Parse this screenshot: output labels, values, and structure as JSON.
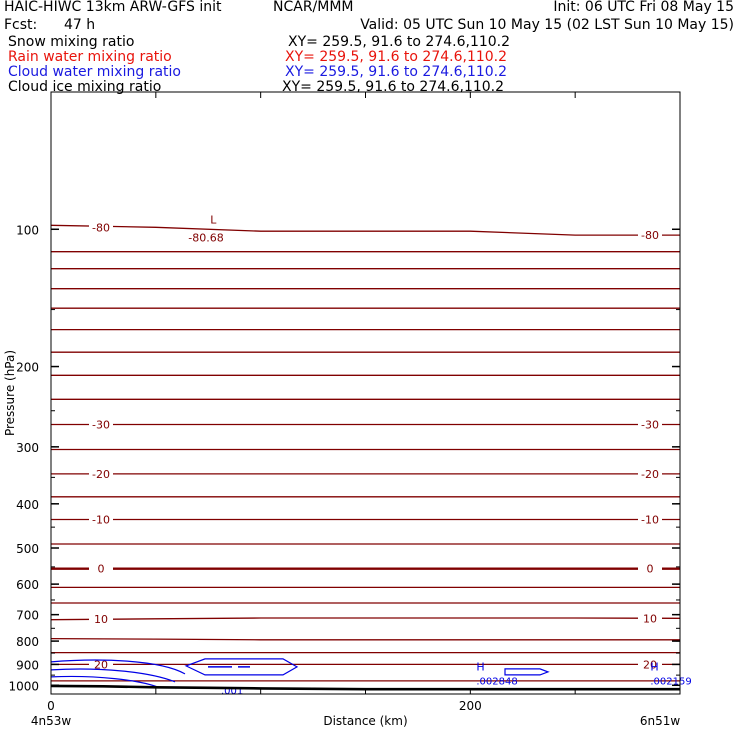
{
  "header": {
    "model": "HAIC-HIWC 13km ARW-GFS init",
    "org": "NCAR/MMM",
    "init": "Init: 06 UTC Fri 08 May 15",
    "fcst_label": "Fcst:",
    "fcst_value": "47 h",
    "valid": "Valid: 05 UTC Sun 10 May 15 (02 LST Sun 10 May 15)"
  },
  "fields": [
    {
      "name": "Snow mixing ratio",
      "xy": "XY= 259.5, 91.6 to 274.6,110.2",
      "color": "#000000"
    },
    {
      "name": "Rain water mixing ratio",
      "xy": "XY= 259.5, 91.6 to 274.6,110.2",
      "color": "#e8140c"
    },
    {
      "name": "Cloud water mixing ratio",
      "xy": "XY= 259.5, 91.6 to 274.6,110.2",
      "color": "#1a1ae0"
    },
    {
      "name": "Cloud ice mixing ratio",
      "xy": "XY= 259.5, 91.6 to 274.6,110.2",
      "color": "#000000"
    }
  ],
  "colors": {
    "temperature": "#800000",
    "cloud_water": "#0000e6",
    "terrain": "#000000"
  },
  "chart_data": {
    "type": "line",
    "ylabel": "Pressure (hPa)",
    "xlabel": "Distance (km)",
    "xlim": [
      0,
      300
    ],
    "ylim": [
      1045,
      50
    ],
    "y_axis": "log",
    "xticks": [
      0,
      200
    ],
    "yticks": [
      100,
      200,
      300,
      400,
      500,
      600,
      700,
      800,
      900,
      1000
    ],
    "start_label": "4n53w",
    "end_label": "6n51w",
    "temperature_isotherms": [
      {
        "label": "-80",
        "p": [
          98,
          99,
          101,
          101,
          101,
          103,
          103
        ]
      },
      {
        "label": "",
        "p": [
          112,
          112,
          112,
          112,
          112,
          112,
          112
        ]
      },
      {
        "label": "",
        "p": [
          122,
          122,
          122,
          122,
          122,
          122,
          122
        ]
      },
      {
        "label": "",
        "p": [
          135,
          135,
          135,
          135,
          135,
          135,
          135
        ]
      },
      {
        "label": "",
        "p": [
          149,
          149,
          149,
          149,
          149,
          149,
          149
        ]
      },
      {
        "label": "",
        "p": [
          166,
          166,
          166,
          166,
          166,
          166,
          166
        ]
      },
      {
        "label": "",
        "p": [
          186,
          186,
          186,
          186,
          186,
          186,
          186
        ]
      },
      {
        "label": "",
        "p": [
          209,
          209,
          209,
          209,
          209,
          209,
          209
        ]
      },
      {
        "label": "",
        "p": [
          236,
          236,
          236,
          236,
          236,
          236,
          236
        ]
      },
      {
        "label": "-30",
        "p": [
          268,
          268,
          268,
          268,
          268,
          268,
          268
        ]
      },
      {
        "label": "",
        "p": [
          304,
          304,
          304,
          304,
          304,
          304,
          304
        ]
      },
      {
        "label": "-20",
        "p": [
          344,
          344,
          344,
          344,
          344,
          344,
          344
        ]
      },
      {
        "label": "",
        "p": [
          386,
          386,
          386,
          386,
          386,
          386,
          386
        ]
      },
      {
        "label": "-10",
        "p": [
          433,
          433,
          433,
          433,
          433,
          433,
          433
        ]
      },
      {
        "label": "",
        "p": [
          490,
          490,
          490,
          490,
          490,
          490,
          490
        ]
      },
      {
        "label": "0",
        "p": [
          555,
          555,
          555,
          555,
          555,
          555,
          555
        ]
      },
      {
        "label": "",
        "p": [
          610,
          610,
          610,
          610,
          610,
          610,
          610
        ]
      },
      {
        "label": "",
        "p": [
          660,
          660,
          660,
          660,
          660,
          660,
          660
        ]
      },
      {
        "label": "10",
        "p": [
          718,
          715,
          712,
          712,
          712,
          712,
          713
        ]
      },
      {
        "label": "",
        "p": [
          790,
          792,
          795,
          795,
          795,
          795,
          795
        ]
      },
      {
        "label": "",
        "p": [
          848,
          848,
          848,
          848,
          848,
          848,
          848
        ]
      },
      {
        "label": "20",
        "p": [
          900,
          900,
          900,
          900,
          900,
          900,
          900
        ]
      },
      {
        "label": "",
        "p": [
          978,
          978,
          978,
          978,
          978,
          978,
          978
        ]
      }
    ],
    "isotherm_x": [
      0,
      50,
      100,
      150,
      200,
      250,
      300
    ],
    "low_center": {
      "label": "L",
      "value": "-80.68",
      "x": 75,
      "p": 98
    },
    "cloud_water_highs": [
      {
        "label": "H",
        "value": ".002848",
        "x": 200,
        "p": 985
      },
      {
        "label": "H",
        "value": ".002159",
        "x": 283,
        "p": 985
      }
    ],
    "cloud_water_contour_label": ".001",
    "terrain": {
      "x": [
        0,
        25,
        50,
        75,
        100,
        125,
        150,
        200,
        250,
        300
      ],
      "p": [
        1003,
        1005,
        1010,
        1013,
        1016,
        1018,
        1020,
        1020,
        1020,
        1020
      ]
    }
  }
}
